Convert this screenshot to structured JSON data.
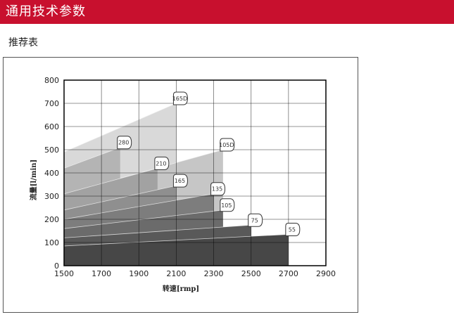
{
  "header": {
    "title": "通用技术参数"
  },
  "section": {
    "subtitle": "推荐表"
  },
  "colors": {
    "header_bg": "#c8102e"
  },
  "chart_data": {
    "type": "area",
    "xlabel": "转速[rmp]",
    "ylabel": "流量[l/min]",
    "xlim": [
      1500,
      2900
    ],
    "ylim": [
      0,
      800
    ],
    "xticks": [
      1500,
      1700,
      1900,
      2100,
      2300,
      2500,
      2700,
      2900
    ],
    "yticks": [
      0,
      100,
      200,
      300,
      400,
      500,
      600,
      700,
      800
    ],
    "grid": true,
    "series": [
      {
        "name": "165D",
        "x": [
          1500,
          2100
        ],
        "y": [
          490,
          700
        ],
        "fill": "#d9d9d9"
      },
      {
        "name": "105D",
        "x": [
          1500,
          2350
        ],
        "y": [
          310,
          500
        ],
        "fill": "#c6c6c6"
      },
      {
        "name": "280",
        "x": [
          1500,
          1800
        ],
        "y": [
          420,
          510
        ],
        "fill": "#b4b4b4"
      },
      {
        "name": "210",
        "x": [
          1500,
          2000
        ],
        "y": [
          310,
          420
        ],
        "fill": "#a2a2a2"
      },
      {
        "name": "165",
        "x": [
          1500,
          2100
        ],
        "y": [
          240,
          345
        ],
        "fill": "#8f8f8f"
      },
      {
        "name": "135",
        "x": [
          1500,
          2300
        ],
        "y": [
          200,
          310
        ],
        "fill": "#7d7d7d"
      },
      {
        "name": "105",
        "x": [
          1500,
          2350
        ],
        "y": [
          160,
          240
        ],
        "fill": "#6b6b6b"
      },
      {
        "name": "75",
        "x": [
          1500,
          2500
        ],
        "y": [
          120,
          175
        ],
        "fill": "#595959"
      },
      {
        "name": "55",
        "x": [
          1500,
          2700
        ],
        "y": [
          85,
          135
        ],
        "fill": "#474747"
      }
    ]
  }
}
